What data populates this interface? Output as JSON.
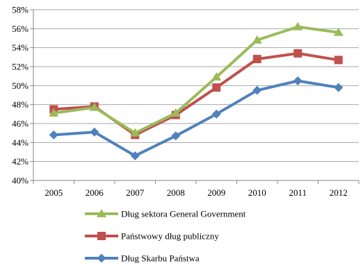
{
  "chart_data": {
    "type": "line",
    "categories": [
      "2005",
      "2006",
      "2007",
      "2008",
      "2009",
      "2010",
      "2011",
      "2012"
    ],
    "ylim": [
      40,
      58
    ],
    "yticks": [
      40,
      42,
      44,
      46,
      48,
      50,
      52,
      54,
      56,
      58
    ],
    "ytick_labels": [
      "40%",
      "42%",
      "44%",
      "46%",
      "48%",
      "50%",
      "52%",
      "54%",
      "56%",
      "58%"
    ],
    "grid": true,
    "legend_position": "bottom",
    "series": [
      {
        "name": "Dług sektora General Government",
        "color": "#9bbb59",
        "marker": "triangle",
        "values": [
          47.1,
          47.7,
          45.0,
          47.1,
          50.9,
          54.8,
          56.2,
          55.6
        ]
      },
      {
        "name": "Państwowy dług publiczny",
        "color": "#c0504d",
        "marker": "square",
        "values": [
          47.5,
          47.8,
          44.8,
          46.9,
          49.8,
          52.8,
          53.4,
          52.7
        ]
      },
      {
        "name": "Dług Skarbu Państwa",
        "color": "#4f81bd",
        "marker": "diamond",
        "values": [
          44.8,
          45.1,
          42.6,
          44.7,
          47.0,
          49.5,
          50.5,
          49.8
        ]
      }
    ]
  }
}
